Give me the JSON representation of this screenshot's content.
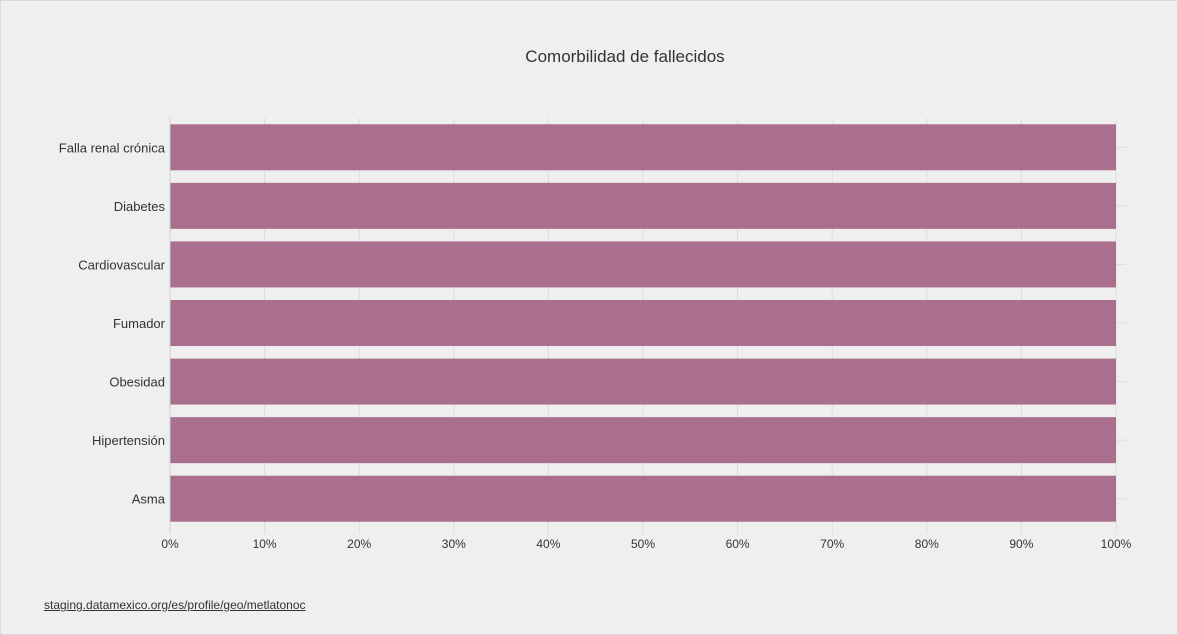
{
  "chart_data": {
    "type": "bar",
    "orientation": "horizontal",
    "stacked": true,
    "title": "Comorbilidad de fallecidos",
    "categories": [
      "Falla renal crónica",
      "Diabetes",
      "Cardiovascular",
      "Fumador",
      "Obesidad",
      "Hipertensión",
      "Asma"
    ],
    "values": [
      100,
      100,
      100,
      100,
      100,
      100,
      100
    ],
    "xlim": [
      0,
      100
    ],
    "x_ticks": [
      "0%",
      "10%",
      "20%",
      "30%",
      "40%",
      "50%",
      "60%",
      "70%",
      "80%",
      "90%",
      "100%"
    ],
    "grid": true,
    "legend": "none",
    "bar_color": "#a96f8c"
  },
  "source_link": "staging.datamexico.org/es/profile/geo/metlatonoc"
}
